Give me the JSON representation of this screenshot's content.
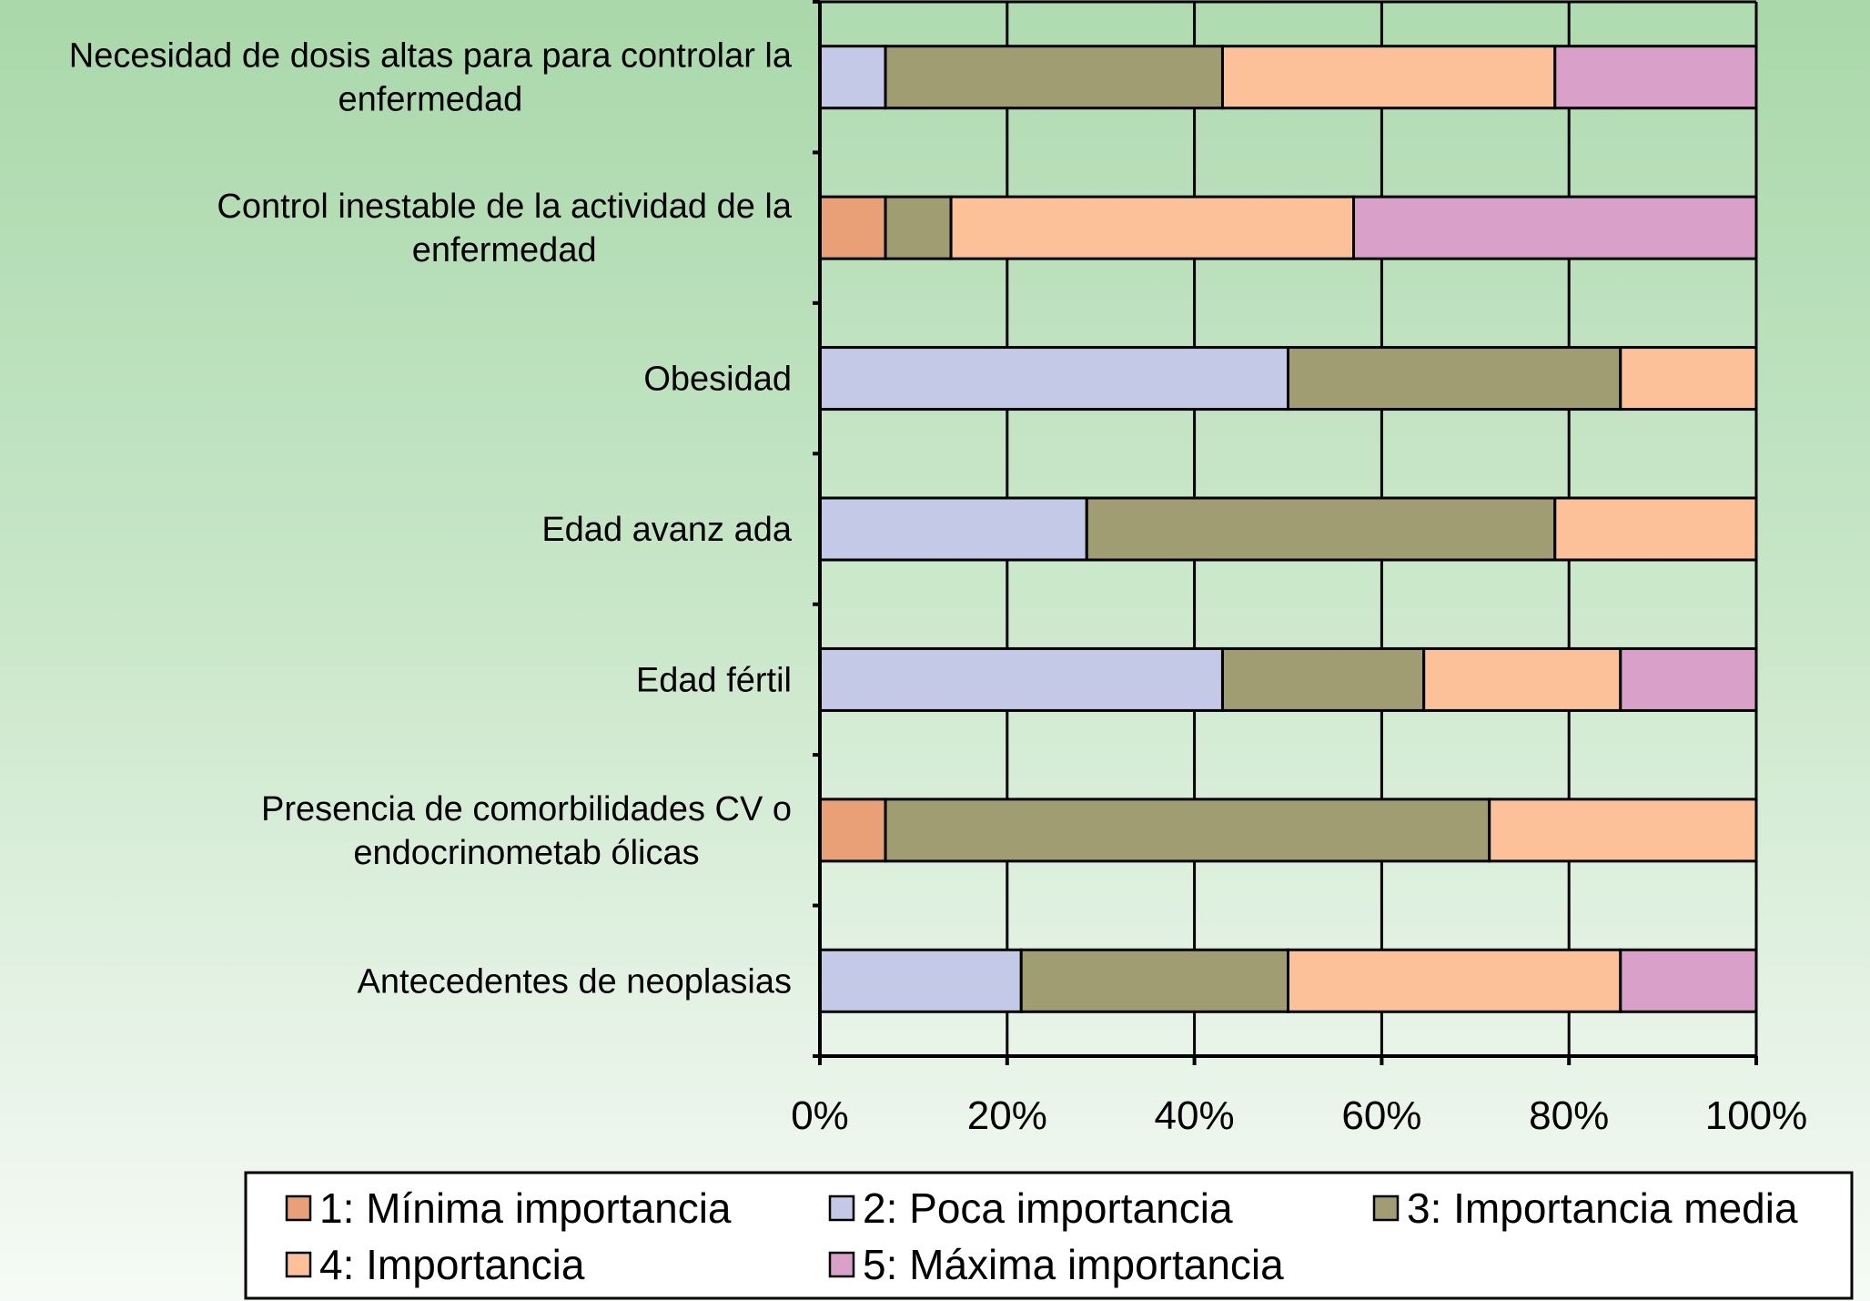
{
  "chart_data": {
    "type": "bar",
    "orientation": "horizontal",
    "stacked": "percent",
    "categories": [
      [
        "Necesidad de dosis altas para para controlar la",
        "enfermedad"
      ],
      [
        "Control inestable de la actividad de la",
        "enfermedad"
      ],
      [
        "Obesidad"
      ],
      [
        "Edad avanz ada"
      ],
      [
        "Edad fértil"
      ],
      [
        "Presencia de comorbilidades CV o",
        "endocrinometab ólicas"
      ],
      [
        "Antecedentes de neoplasias"
      ]
    ],
    "series": [
      {
        "name": "1: Mínima importancia",
        "color": "#e9a077",
        "values": [
          0,
          7,
          0,
          0,
          0,
          7,
          0
        ]
      },
      {
        "name": "2: Poca importancia",
        "color": "#c4c9e8",
        "values": [
          7,
          0,
          50,
          28.5,
          43,
          0,
          21.5
        ]
      },
      {
        "name": "3: Importancia media",
        "color": "#a19d72",
        "values": [
          36,
          7,
          35.5,
          50,
          21.5,
          64.5,
          28.5
        ]
      },
      {
        "name": "4: Importancia",
        "color": "#fdc19a",
        "values": [
          35.5,
          43,
          14.5,
          21.5,
          21,
          28.5,
          35.5
        ]
      },
      {
        "name": "5: Máxima importancia",
        "color": "#d9a1c9",
        "values": [
          21.5,
          43,
          0,
          0,
          14.5,
          0,
          14.5
        ]
      }
    ],
    "xlim": [
      0,
      100
    ],
    "x_ticks": [
      "0%",
      "20%",
      "40%",
      "60%",
      "80%",
      "100%"
    ],
    "grid": true,
    "legend_position": "bottom"
  }
}
